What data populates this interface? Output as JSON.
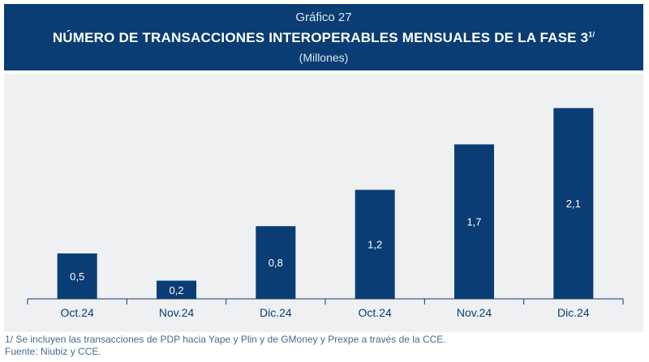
{
  "header": {
    "label": "Gráfico 27",
    "title": "NÚMERO DE TRANSACCIONES INTEROPERABLES MENSUALES DE LA FASE 3",
    "title_note": "1/",
    "subtitle": "(Millones)"
  },
  "colors": {
    "header_bg": "#0a3d73",
    "bar": "#0a3d73",
    "panel_bg": "#eef0f2",
    "axis": "#0a3d73"
  },
  "chart_data": {
    "type": "bar",
    "title": "NÚMERO DE TRANSACCIONES INTEROPERABLES MENSUALES DE LA FASE 3",
    "subtitle": "(Millones)",
    "categories": [
      "Oct.24",
      "Nov.24",
      "Dic.24",
      "Oct.24",
      "Nov.24",
      "Dic.24"
    ],
    "values": [
      0.5,
      0.2,
      0.8,
      1.2,
      1.7,
      2.1
    ],
    "labels": [
      "0,5",
      "0,2",
      "0,8",
      "1,2",
      "1,7",
      "2,1"
    ],
    "ylim": [
      0,
      2.3
    ],
    "grid": false,
    "legend": "none"
  },
  "footnotes": {
    "note": "1/ Se incluyen las transacciones de PDP hacia Yape y Plin y de GMoney y Prexpe a través de la CCE.",
    "source": "Fuente: Niubiz y CCE."
  }
}
